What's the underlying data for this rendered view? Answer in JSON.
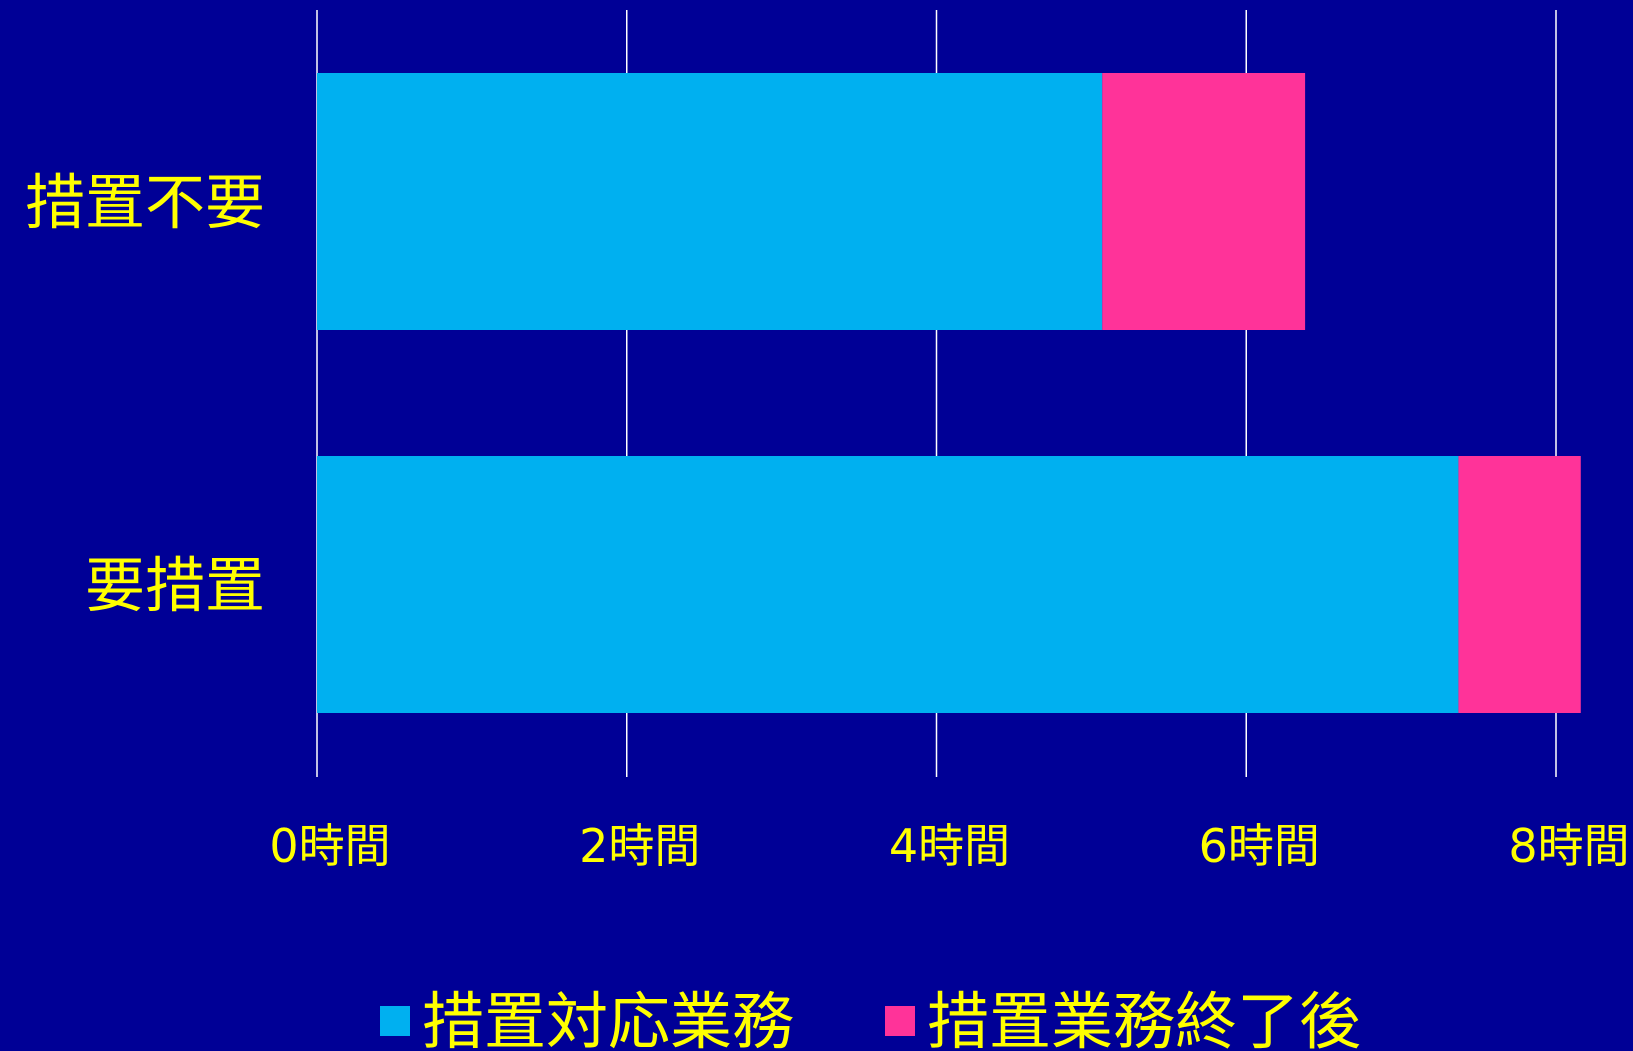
{
  "chart_data": {
    "type": "bar",
    "orientation": "horizontal",
    "stacked": true,
    "categories": [
      "措置不要",
      "要措置"
    ],
    "series": [
      {
        "name": "措置対応業務",
        "values": [
          5.07,
          7.37
        ]
      },
      {
        "name": "措置業務終了後",
        "values": [
          1.31,
          0.79
        ]
      }
    ],
    "xticks": [
      "0時間",
      "2時間",
      "4時間",
      "6時間",
      "8時間"
    ],
    "xlim": [
      0,
      8
    ],
    "grid": true,
    "legend_position": "bottom",
    "colors": {
      "background": "#000096",
      "series": [
        "#00B0F0",
        "#FF3399"
      ],
      "text": "#FFFF00",
      "grid": "#FFFFFF"
    }
  }
}
